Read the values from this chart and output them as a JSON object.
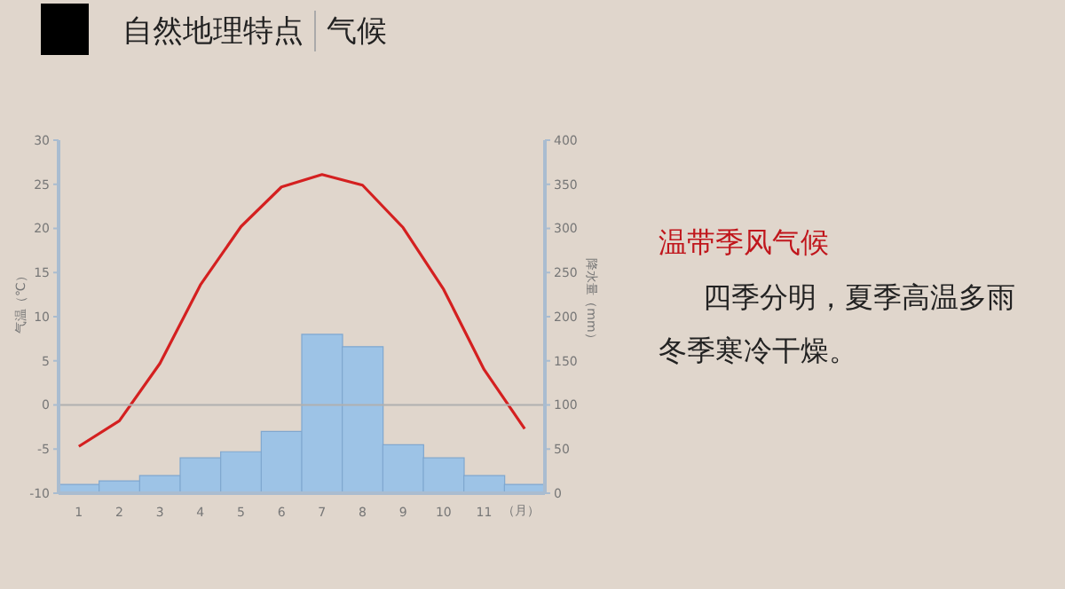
{
  "chart_data": {
    "type": "bar",
    "title": "自然地理特点",
    "subtitle": "气候",
    "ylabel": "气温（℃）",
    "y2label": "降水量（mm）",
    "xlabel": "（月）",
    "categories": [
      "1",
      "2",
      "3",
      "4",
      "5",
      "6",
      "7",
      "8",
      "9",
      "10",
      "11",
      null
    ],
    "series": [
      {
        "type": "bar",
        "color": "#9dc3e6",
        "axis": "y2",
        "values": [
          10,
          14,
          20,
          40,
          47,
          70,
          180,
          166,
          55,
          40,
          20,
          10
        ]
      },
      {
        "type": "line",
        "color": "#d42020",
        "axis": "y",
        "values": [
          -4.7,
          -1.8,
          4.7,
          13.6,
          20.2,
          24.7,
          26.1,
          24.9,
          20.1,
          13.1,
          4.0,
          -2.7
        ]
      }
    ],
    "ylim": [
      -10,
      30
    ],
    "yticks": [
      -10,
      -5,
      0,
      5,
      10,
      15,
      20,
      25,
      30
    ],
    "y2lim": [
      0,
      400
    ],
    "y2ticks": [
      0,
      50,
      100,
      150,
      200,
      250,
      300,
      350,
      400
    ],
    "ref_lines": [
      {
        "axis": "y",
        "value": 0,
        "color": "#b0b0b0"
      }
    ],
    "marker": "none",
    "grid": false,
    "legend": false,
    "annotations": [
      "温带季风气候",
      "四季分明，夏季高温多雨",
      "冬季寒冷干燥。"
    ]
  }
}
